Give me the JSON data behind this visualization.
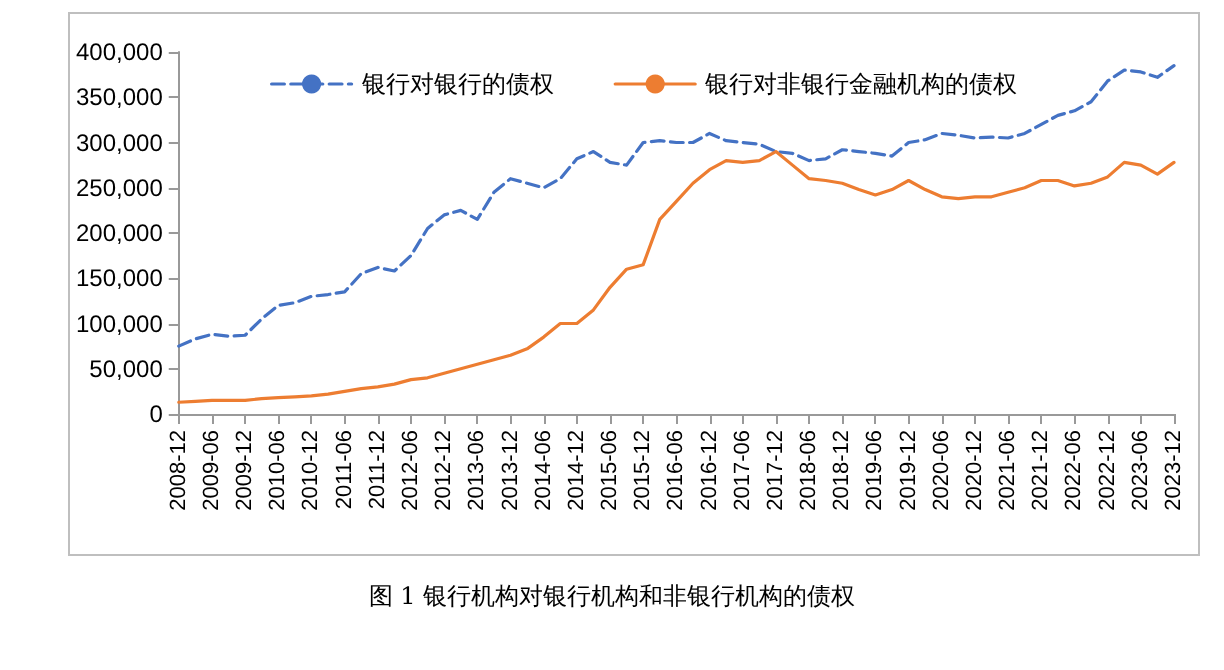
{
  "chart_data": {
    "type": "line",
    "categories": [
      "2008-12",
      null,
      "2009-06",
      null,
      "2009-12",
      null,
      "2010-06",
      null,
      "2010-12",
      null,
      "2011-06",
      null,
      "2011-12",
      null,
      "2012-06",
      null,
      "2012-12",
      null,
      "2013-06",
      null,
      "2013-12",
      null,
      "2014-06",
      null,
      "2014-12",
      null,
      "2015-06",
      null,
      "2015-12",
      null,
      "2016-06",
      null,
      "2016-12",
      null,
      "2017-06",
      null,
      "2017-12",
      null,
      "2018-06",
      null,
      "2018-12",
      null,
      "2019-06",
      null,
      "2019-12",
      null,
      "2020-06",
      null,
      "2020-12",
      null,
      "2021-06",
      null,
      "2021-12",
      null,
      "2022-06",
      null,
      "2022-12",
      null,
      "2023-06",
      null,
      "2023-12"
    ],
    "series": [
      {
        "name": "银行对银行的债权",
        "color": "#4472c4",
        "line_style": "dashed",
        "values": [
          75000,
          83000,
          88000,
          86000,
          87000,
          105000,
          120000,
          123000,
          130000,
          132000,
          135000,
          155000,
          162000,
          158000,
          175000,
          205000,
          220000,
          225000,
          215000,
          245000,
          260000,
          255000,
          250000,
          260000,
          282000,
          290000,
          278000,
          275000,
          300000,
          302000,
          300000,
          300000,
          310000,
          302000,
          300000,
          298000,
          290000,
          288000,
          280000,
          282000,
          292000,
          290000,
          288000,
          285000,
          300000,
          303000,
          310000,
          308000,
          305000,
          306000,
          305000,
          310000,
          320000,
          330000,
          335000,
          345000,
          368000,
          380000,
          378000,
          372000,
          385000
        ]
      },
      {
        "name": "银行对非银行金融机构的债权",
        "color": "#ed7d31",
        "line_style": "solid",
        "values": [
          13000,
          14000,
          15000,
          15000,
          15000,
          17000,
          18000,
          19000,
          20000,
          22000,
          25000,
          28000,
          30000,
          33000,
          38000,
          40000,
          45000,
          50000,
          55000,
          60000,
          65000,
          72000,
          85000,
          100000,
          100000,
          115000,
          140000,
          160000,
          165000,
          215000,
          235000,
          255000,
          270000,
          280000,
          278000,
          280000,
          290000,
          275000,
          260000,
          258000,
          255000,
          248000,
          242000,
          248000,
          258000,
          248000,
          240000,
          238000,
          240000,
          240000,
          245000,
          250000,
          258000,
          258000,
          252000,
          255000,
          262000,
          278000,
          275000,
          265000,
          278000
        ]
      }
    ],
    "ylim": [
      0,
      400000
    ],
    "yticks": [
      {
        "value": 0,
        "label": "0"
      },
      {
        "value": 50000,
        "label": "50,000"
      },
      {
        "value": 100000,
        "label": "100,000"
      },
      {
        "value": 150000,
        "label": "150,000"
      },
      {
        "value": 200000,
        "label": "200,000"
      },
      {
        "value": 250000,
        "label": "250,000"
      },
      {
        "value": 300000,
        "label": "300,000"
      },
      {
        "value": 350000,
        "label": "350,000"
      },
      {
        "value": 400000,
        "label": "400,000"
      }
    ],
    "grid": false,
    "legend": "top",
    "marker": "none",
    "annotations": [
      "图 1 银行机构对银行机构和非银行机构的债权"
    ]
  }
}
